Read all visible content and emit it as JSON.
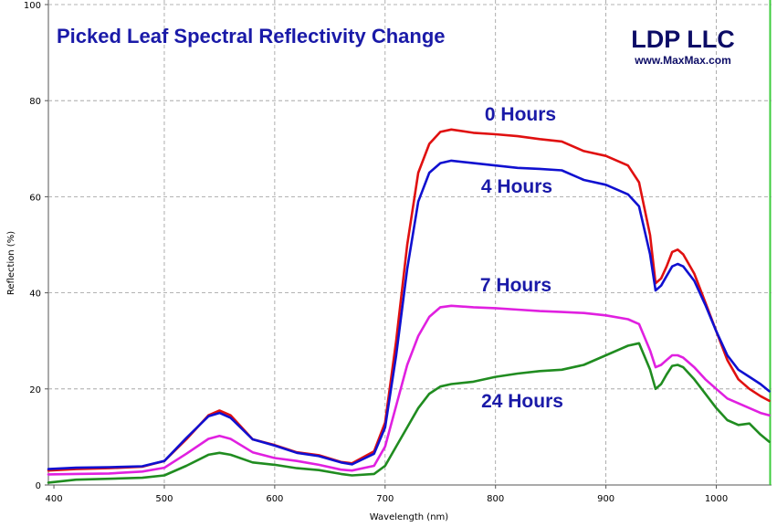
{
  "chart_data": {
    "type": "line",
    "title": "Picked Leaf Spectral Reflectivity Change",
    "xlabel": "Wavelength (nm)",
    "ylabel": "Reflection (%)",
    "xlim": [
      395,
      1050
    ],
    "ylim": [
      0,
      100
    ],
    "x_ticks": [
      "400",
      "500",
      "600",
      "700",
      "800",
      "900",
      "1000"
    ],
    "y_ticks": [
      "0",
      "20",
      "40",
      "60",
      "80",
      "100"
    ],
    "grid": true,
    "brand": "LDP LLC",
    "brand_url": "www.MaxMax.com",
    "series": [
      {
        "name": "0 Hours",
        "color": "#e01010",
        "points": [
          [
            395,
            3.0
          ],
          [
            420,
            3.3
          ],
          [
            450,
            3.5
          ],
          [
            480,
            3.8
          ],
          [
            500,
            5.0
          ],
          [
            520,
            9.5
          ],
          [
            540,
            14.5
          ],
          [
            550,
            15.5
          ],
          [
            560,
            14.5
          ],
          [
            580,
            9.5
          ],
          [
            600,
            8.3
          ],
          [
            620,
            6.8
          ],
          [
            640,
            6.2
          ],
          [
            660,
            4.8
          ],
          [
            670,
            4.5
          ],
          [
            690,
            7.0
          ],
          [
            700,
            13.0
          ],
          [
            710,
            30.0
          ],
          [
            720,
            50.0
          ],
          [
            730,
            65.0
          ],
          [
            740,
            71.0
          ],
          [
            750,
            73.5
          ],
          [
            760,
            74.0
          ],
          [
            780,
            73.3
          ],
          [
            800,
            73.0
          ],
          [
            820,
            72.6
          ],
          [
            840,
            72.0
          ],
          [
            860,
            71.5
          ],
          [
            880,
            69.5
          ],
          [
            900,
            68.5
          ],
          [
            920,
            66.5
          ],
          [
            930,
            63.0
          ],
          [
            940,
            52.0
          ],
          [
            945,
            42.0
          ],
          [
            950,
            43.0
          ],
          [
            955,
            45.5
          ],
          [
            960,
            48.5
          ],
          [
            965,
            49.0
          ],
          [
            970,
            48.0
          ],
          [
            980,
            44.0
          ],
          [
            990,
            38.0
          ],
          [
            1000,
            32.0
          ],
          [
            1010,
            26.0
          ],
          [
            1020,
            22.0
          ],
          [
            1030,
            20.0
          ],
          [
            1040,
            18.5
          ],
          [
            1048,
            17.5
          ]
        ]
      },
      {
        "name": "4 Hours",
        "color": "#1010d0",
        "points": [
          [
            395,
            3.3
          ],
          [
            420,
            3.6
          ],
          [
            450,
            3.7
          ],
          [
            480,
            3.9
          ],
          [
            500,
            5.0
          ],
          [
            520,
            9.8
          ],
          [
            540,
            14.3
          ],
          [
            550,
            15.0
          ],
          [
            560,
            14.0
          ],
          [
            580,
            9.5
          ],
          [
            600,
            8.2
          ],
          [
            620,
            6.7
          ],
          [
            640,
            6.0
          ],
          [
            660,
            4.7
          ],
          [
            670,
            4.3
          ],
          [
            690,
            6.5
          ],
          [
            700,
            12.0
          ],
          [
            710,
            27.0
          ],
          [
            720,
            45.0
          ],
          [
            730,
            59.0
          ],
          [
            740,
            65.0
          ],
          [
            750,
            67.0
          ],
          [
            760,
            67.5
          ],
          [
            780,
            67.0
          ],
          [
            800,
            66.5
          ],
          [
            820,
            66.0
          ],
          [
            840,
            65.8
          ],
          [
            860,
            65.5
          ],
          [
            880,
            63.5
          ],
          [
            900,
            62.5
          ],
          [
            920,
            60.5
          ],
          [
            930,
            58.0
          ],
          [
            940,
            48.0
          ],
          [
            945,
            40.5
          ],
          [
            950,
            41.5
          ],
          [
            955,
            43.5
          ],
          [
            960,
            45.5
          ],
          [
            965,
            46.0
          ],
          [
            970,
            45.5
          ],
          [
            980,
            42.5
          ],
          [
            990,
            37.5
          ],
          [
            1000,
            32.0
          ],
          [
            1010,
            27.0
          ],
          [
            1020,
            24.0
          ],
          [
            1030,
            22.5
          ],
          [
            1040,
            21.0
          ],
          [
            1048,
            19.5
          ]
        ]
      },
      {
        "name": "7 Hours",
        "color": "#e020e0",
        "points": [
          [
            395,
            2.2
          ],
          [
            420,
            2.3
          ],
          [
            450,
            2.4
          ],
          [
            480,
            2.8
          ],
          [
            500,
            3.6
          ],
          [
            520,
            6.5
          ],
          [
            540,
            9.6
          ],
          [
            550,
            10.2
          ],
          [
            560,
            9.6
          ],
          [
            580,
            6.8
          ],
          [
            600,
            5.6
          ],
          [
            620,
            5.0
          ],
          [
            640,
            4.2
          ],
          [
            660,
            3.2
          ],
          [
            670,
            3.0
          ],
          [
            690,
            4.0
          ],
          [
            700,
            8.0
          ],
          [
            710,
            16.5
          ],
          [
            720,
            25.0
          ],
          [
            730,
            31.0
          ],
          [
            740,
            35.0
          ],
          [
            750,
            37.0
          ],
          [
            760,
            37.3
          ],
          [
            780,
            37.0
          ],
          [
            800,
            36.8
          ],
          [
            820,
            36.5
          ],
          [
            840,
            36.2
          ],
          [
            860,
            36.0
          ],
          [
            880,
            35.8
          ],
          [
            900,
            35.3
          ],
          [
            920,
            34.5
          ],
          [
            930,
            33.5
          ],
          [
            940,
            28.0
          ],
          [
            945,
            24.5
          ],
          [
            950,
            25.0
          ],
          [
            955,
            26.0
          ],
          [
            960,
            27.0
          ],
          [
            965,
            27.0
          ],
          [
            970,
            26.5
          ],
          [
            980,
            24.5
          ],
          [
            990,
            22.0
          ],
          [
            1000,
            20.0
          ],
          [
            1010,
            18.0
          ],
          [
            1020,
            17.0
          ],
          [
            1030,
            16.0
          ],
          [
            1040,
            15.0
          ],
          [
            1048,
            14.5
          ]
        ]
      },
      {
        "name": "24 Hours",
        "color": "#208c20",
        "points": [
          [
            395,
            0.5
          ],
          [
            420,
            1.1
          ],
          [
            450,
            1.3
          ],
          [
            480,
            1.5
          ],
          [
            500,
            2.0
          ],
          [
            520,
            4.0
          ],
          [
            540,
            6.3
          ],
          [
            550,
            6.7
          ],
          [
            560,
            6.3
          ],
          [
            580,
            4.7
          ],
          [
            600,
            4.2
          ],
          [
            620,
            3.5
          ],
          [
            640,
            3.1
          ],
          [
            660,
            2.3
          ],
          [
            670,
            2.0
          ],
          [
            690,
            2.3
          ],
          [
            700,
            4.0
          ],
          [
            710,
            8.0
          ],
          [
            720,
            12.0
          ],
          [
            730,
            16.0
          ],
          [
            740,
            19.0
          ],
          [
            750,
            20.5
          ],
          [
            760,
            21.0
          ],
          [
            780,
            21.5
          ],
          [
            800,
            22.5
          ],
          [
            820,
            23.2
          ],
          [
            840,
            23.7
          ],
          [
            860,
            24.0
          ],
          [
            880,
            25.0
          ],
          [
            900,
            27.0
          ],
          [
            920,
            29.0
          ],
          [
            930,
            29.5
          ],
          [
            940,
            24.0
          ],
          [
            945,
            20.0
          ],
          [
            950,
            21.0
          ],
          [
            955,
            23.0
          ],
          [
            960,
            24.8
          ],
          [
            965,
            25.0
          ],
          [
            970,
            24.5
          ],
          [
            980,
            22.0
          ],
          [
            990,
            19.0
          ],
          [
            1000,
            16.0
          ],
          [
            1010,
            13.5
          ],
          [
            1020,
            12.5
          ],
          [
            1030,
            12.8
          ],
          [
            1040,
            10.5
          ],
          [
            1048,
            9.0
          ]
        ]
      }
    ]
  }
}
